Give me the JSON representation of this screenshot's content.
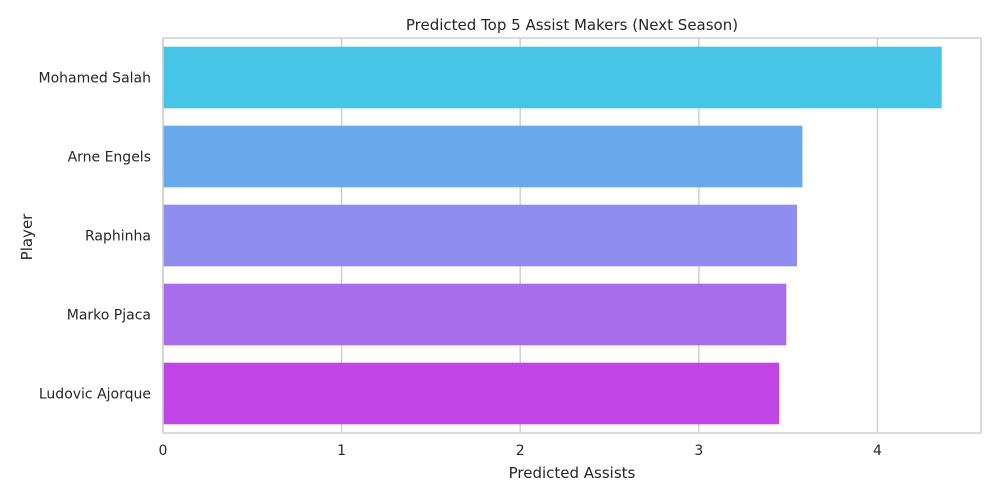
{
  "chart_data": {
    "type": "bar",
    "orientation": "horizontal",
    "title": "Predicted Top 5 Assist Makers (Next Season)",
    "xlabel": "Predicted Assists",
    "ylabel": "Player",
    "categories": [
      "Mohamed Salah",
      "Arne Engels",
      "Raphinha",
      "Marko Pjaca",
      "Ludovic Ajorque"
    ],
    "values": [
      4.36,
      3.58,
      3.55,
      3.49,
      3.45
    ],
    "colors": [
      "#46c5e6",
      "#69a9ec",
      "#8f8ef0",
      "#a96cea",
      "#c245e6"
    ],
    "xlim": [
      0,
      4.58
    ],
    "xticks": [
      0,
      1,
      2,
      3,
      4
    ],
    "grid": true,
    "grid_axis": "x"
  }
}
